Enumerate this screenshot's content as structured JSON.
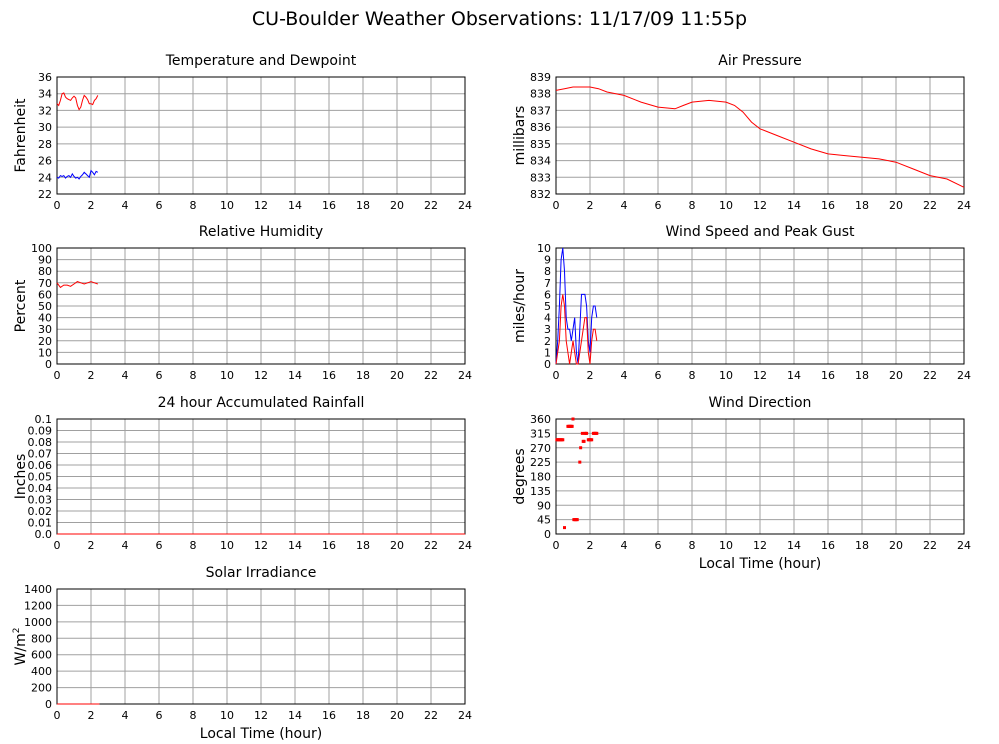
{
  "title": "CU-Boulder Weather Observations: 11/17/09 11:55p",
  "chart_data": [
    {
      "id": "temp",
      "type": "line",
      "title": "Temperature and Dewpoint",
      "xlabel": "",
      "ylabel": "Fahrenheit",
      "xlim": [
        0,
        24
      ],
      "ylim": [
        22,
        36
      ],
      "xticks": [
        0,
        2,
        4,
        6,
        8,
        10,
        12,
        14,
        16,
        18,
        20,
        22,
        24
      ],
      "yticks": [
        22,
        24,
        26,
        28,
        30,
        32,
        34,
        36
      ],
      "grid": true,
      "series": [
        {
          "color": "#ff0000",
          "x": [
            0,
            0.1,
            0.2,
            0.3,
            0.4,
            0.5,
            0.6,
            0.7,
            0.8,
            0.9,
            1.0,
            1.1,
            1.2,
            1.3,
            1.4,
            1.5,
            1.6,
            1.7,
            1.8,
            1.9,
            2.0,
            2.1,
            2.2,
            2.3,
            2.4
          ],
          "y": [
            32.8,
            32.6,
            33.2,
            34.0,
            34.1,
            33.6,
            33.4,
            33.3,
            33.2,
            33.5,
            33.7,
            33.5,
            32.6,
            32.1,
            32.4,
            33.2,
            33.8,
            33.6,
            33.3,
            32.8,
            32.8,
            32.7,
            33.2,
            33.4,
            33.8
          ]
        },
        {
          "color": "#0000ff",
          "x": [
            0,
            0.1,
            0.2,
            0.3,
            0.4,
            0.5,
            0.6,
            0.7,
            0.8,
            0.9,
            1.0,
            1.1,
            1.2,
            1.3,
            1.4,
            1.5,
            1.6,
            1.7,
            1.8,
            1.9,
            2.0,
            2.1,
            2.2,
            2.3,
            2.4
          ],
          "y": [
            24.0,
            23.9,
            24.2,
            24.1,
            24.2,
            23.9,
            24.1,
            24.2,
            24.0,
            24.4,
            24.1,
            23.9,
            24.0,
            23.8,
            24.1,
            24.3,
            24.6,
            24.4,
            24.2,
            24.0,
            24.8,
            24.6,
            24.3,
            24.7,
            24.6
          ]
        }
      ]
    },
    {
      "id": "pressure",
      "type": "line",
      "title": "Air Pressure",
      "xlabel": "",
      "ylabel": "millibars",
      "xlim": [
        0,
        24
      ],
      "ylim": [
        832,
        839
      ],
      "xticks": [
        0,
        2,
        4,
        6,
        8,
        10,
        12,
        14,
        16,
        18,
        20,
        22,
        24
      ],
      "yticks": [
        832,
        833,
        834,
        835,
        836,
        837,
        838,
        839
      ],
      "grid": true,
      "series": [
        {
          "color": "#ff0000",
          "x": [
            0,
            0.5,
            1,
            1.5,
            2,
            2.5,
            3,
            4,
            5,
            6,
            7,
            7.5,
            8,
            9,
            10,
            10.5,
            11,
            11.5,
            12,
            13,
            14,
            15,
            16,
            17,
            18,
            19,
            20,
            21,
            22,
            23,
            24
          ],
          "y": [
            838.2,
            838.3,
            838.4,
            838.4,
            838.4,
            838.3,
            838.1,
            837.9,
            837.5,
            837.2,
            837.1,
            837.3,
            837.5,
            837.6,
            837.5,
            837.3,
            836.9,
            836.3,
            835.9,
            835.5,
            835.1,
            834.7,
            834.4,
            834.3,
            834.2,
            834.1,
            833.9,
            833.5,
            833.1,
            832.9,
            832.4
          ]
        }
      ]
    },
    {
      "id": "humidity",
      "type": "line",
      "title": "Relative Humidity",
      "xlabel": "",
      "ylabel": "Percent",
      "xlim": [
        0,
        24
      ],
      "ylim": [
        0,
        100
      ],
      "xticks": [
        0,
        2,
        4,
        6,
        8,
        10,
        12,
        14,
        16,
        18,
        20,
        22,
        24
      ],
      "yticks": [
        0,
        10,
        20,
        30,
        40,
        50,
        60,
        70,
        80,
        90,
        100
      ],
      "grid": true,
      "series": [
        {
          "color": "#ff0000",
          "x": [
            0,
            0.2,
            0.4,
            0.6,
            0.8,
            1.0,
            1.2,
            1.4,
            1.6,
            1.8,
            2.0,
            2.2,
            2.4
          ],
          "y": [
            70,
            66,
            68,
            68,
            67,
            69,
            71,
            70,
            69,
            70,
            71,
            70,
            69
          ]
        }
      ]
    },
    {
      "id": "wind",
      "type": "line",
      "title": "Wind Speed and Peak Gust",
      "xlabel": "",
      "ylabel": "miles/hour",
      "xlim": [
        0,
        24
      ],
      "ylim": [
        0,
        10
      ],
      "xticks": [
        0,
        2,
        4,
        6,
        8,
        10,
        12,
        14,
        16,
        18,
        20,
        22,
        24
      ],
      "yticks": [
        0,
        1,
        2,
        3,
        4,
        5,
        6,
        7,
        8,
        9,
        10
      ],
      "grid": true,
      "series": [
        {
          "color": "#0000ff",
          "x": [
            0,
            0.1,
            0.2,
            0.3,
            0.4,
            0.5,
            0.6,
            0.7,
            0.8,
            0.9,
            1.0,
            1.1,
            1.2,
            1.3,
            1.4,
            1.5,
            1.6,
            1.7,
            1.8,
            1.9,
            2.0,
            2.1,
            2.2,
            2.3,
            2.4
          ],
          "y": [
            0,
            2,
            5,
            9,
            10,
            8,
            4,
            3,
            3,
            2,
            3,
            4,
            1,
            0,
            3,
            6,
            6,
            6,
            5,
            2,
            1,
            4,
            5,
            5,
            4
          ]
        },
        {
          "color": "#ff0000",
          "x": [
            0,
            0.1,
            0.2,
            0.3,
            0.4,
            0.5,
            0.6,
            0.7,
            0.8,
            0.9,
            1.0,
            1.1,
            1.2,
            1.3,
            1.4,
            1.5,
            1.6,
            1.7,
            1.8,
            1.9,
            2.0,
            2.1,
            2.2,
            2.3,
            2.4
          ],
          "y": [
            0,
            1,
            2,
            5,
            6,
            5,
            2,
            1,
            0,
            1,
            2,
            1,
            0,
            0,
            1,
            2,
            3,
            4,
            4,
            1,
            0,
            2,
            3,
            3,
            2
          ]
        }
      ]
    },
    {
      "id": "rain",
      "type": "line",
      "title": "24 hour Accumulated Rainfall",
      "xlabel": "",
      "ylabel": "Inches",
      "xlim": [
        0,
        24
      ],
      "ylim": [
        0,
        0.1
      ],
      "xticks": [
        0,
        2,
        4,
        6,
        8,
        10,
        12,
        14,
        16,
        18,
        20,
        22,
        24
      ],
      "yticks": [
        "0.0",
        "0.01",
        "0.02",
        "0.03",
        "0.04",
        "0.05",
        "0.06",
        "0.07",
        "0.08",
        "0.09",
        "0.1"
      ],
      "grid": true,
      "series": [
        {
          "color": "#ff0000",
          "x": [
            0,
            24
          ],
          "y": [
            0,
            0
          ]
        }
      ]
    },
    {
      "id": "direction",
      "type": "scatter",
      "title": "Wind Direction",
      "xlabel": "Local Time (hour)",
      "ylabel": "degrees",
      "xlim": [
        0,
        24
      ],
      "ylim": [
        0,
        360
      ],
      "xticks": [
        0,
        2,
        4,
        6,
        8,
        10,
        12,
        14,
        16,
        18,
        20,
        22,
        24
      ],
      "yticks": [
        0,
        45,
        90,
        135,
        180,
        225,
        270,
        315,
        360
      ],
      "grid": true,
      "series": [
        {
          "color": "#ff0000",
          "x": [
            0.05,
            0.1,
            0.15,
            0.2,
            0.25,
            0.3,
            0.35,
            0.4,
            0.5,
            0.7,
            0.75,
            0.8,
            0.85,
            0.9,
            0.95,
            1.0,
            1.05,
            1.1,
            1.15,
            1.2,
            1.25,
            1.4,
            1.45,
            1.55,
            1.6,
            1.65,
            1.7,
            1.75,
            1.8,
            1.9,
            1.95,
            2.0,
            2.05,
            2.1,
            2.2,
            2.25,
            2.3,
            2.35,
            2.4
          ],
          "y": [
            295,
            295,
            295,
            295,
            295,
            295,
            295,
            295,
            20,
            337,
            337,
            337,
            337,
            337,
            337,
            360,
            45,
            45,
            45,
            45,
            45,
            225,
            270,
            315,
            290,
            290,
            315,
            315,
            315,
            295,
            295,
            295,
            295,
            295,
            315,
            315,
            315,
            315,
            315
          ]
        }
      ]
    },
    {
      "id": "solar",
      "type": "line",
      "title": "Solar Irradiance",
      "xlabel": "Local Time (hour)",
      "ylabel": "W/m",
      "ylabel_sup": "2",
      "xlim": [
        0,
        24
      ],
      "ylim": [
        0,
        1400
      ],
      "xticks": [
        0,
        2,
        4,
        6,
        8,
        10,
        12,
        14,
        16,
        18,
        20,
        22,
        24
      ],
      "yticks": [
        0,
        200,
        400,
        600,
        800,
        1000,
        1200,
        1400
      ],
      "grid": true,
      "series": [
        {
          "color": "#ff0000",
          "x": [
            0,
            0.5,
            1,
            1.5,
            2,
            2.5
          ],
          "y": [
            0,
            0,
            0,
            0,
            0,
            0
          ]
        }
      ]
    }
  ]
}
